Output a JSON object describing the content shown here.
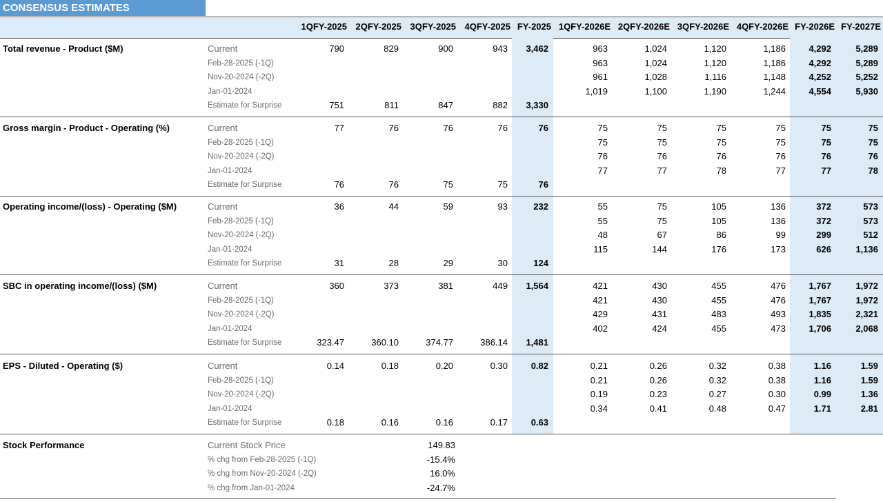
{
  "title": "CONSENSUS ESTIMATES",
  "columns": [
    "1QFY-2025",
    "2QFY-2025",
    "3QFY-2025",
    "4QFY-2025",
    "FY-2025",
    "1QFY-2026E",
    "2QFY-2026E",
    "3QFY-2026E",
    "4QFY-2026E",
    "FY-2026E",
    "FY-2027E"
  ],
  "row_labels": [
    "Current",
    "Feb-28-2025 (-1Q)",
    "Nov-20-2024 (-2Q)",
    "Jan-01-2024",
    "Estimate for Surprise"
  ],
  "metrics": [
    {
      "name": "Total revenue - Product ($M)",
      "rows": [
        [
          "790",
          "829",
          "900",
          "943",
          "3,462",
          "963",
          "1,024",
          "1,120",
          "1,186",
          "4,292",
          "5,289"
        ],
        [
          "",
          "",
          "",
          "",
          "",
          "963",
          "1,024",
          "1,120",
          "1,186",
          "4,292",
          "5,289"
        ],
        [
          "",
          "",
          "",
          "",
          "",
          "961",
          "1,028",
          "1,116",
          "1,148",
          "4,252",
          "5,252"
        ],
        [
          "",
          "",
          "",
          "",
          "",
          "1,019",
          "1,100",
          "1,190",
          "1,244",
          "4,554",
          "5,930"
        ],
        [
          "751",
          "811",
          "847",
          "882",
          "3,330",
          "",
          "",
          "",
          "",
          "",
          ""
        ]
      ]
    },
    {
      "name": "Gross margin - Product - Operating (%)",
      "rows": [
        [
          "77",
          "76",
          "76",
          "76",
          "76",
          "75",
          "75",
          "75",
          "75",
          "75",
          "75"
        ],
        [
          "",
          "",
          "",
          "",
          "",
          "75",
          "75",
          "75",
          "75",
          "75",
          "75"
        ],
        [
          "",
          "",
          "",
          "",
          "",
          "76",
          "76",
          "76",
          "76",
          "76",
          "76"
        ],
        [
          "",
          "",
          "",
          "",
          "",
          "77",
          "77",
          "78",
          "77",
          "77",
          "78"
        ],
        [
          "76",
          "76",
          "75",
          "75",
          "76",
          "",
          "",
          "",
          "",
          "",
          ""
        ]
      ]
    },
    {
      "name": "Operating income/(loss) - Operating ($M)",
      "rows": [
        [
          "36",
          "44",
          "59",
          "93",
          "232",
          "55",
          "75",
          "105",
          "136",
          "372",
          "573"
        ],
        [
          "",
          "",
          "",
          "",
          "",
          "55",
          "75",
          "105",
          "136",
          "372",
          "573"
        ],
        [
          "",
          "",
          "",
          "",
          "",
          "48",
          "67",
          "86",
          "99",
          "299",
          "512"
        ],
        [
          "",
          "",
          "",
          "",
          "",
          "115",
          "144",
          "176",
          "173",
          "626",
          "1,136"
        ],
        [
          "31",
          "28",
          "29",
          "30",
          "124",
          "",
          "",
          "",
          "",
          "",
          ""
        ]
      ]
    },
    {
      "name": "SBC in operating income/(loss) ($M)",
      "rows": [
        [
          "360",
          "373",
          "381",
          "449",
          "1,564",
          "421",
          "430",
          "455",
          "476",
          "1,767",
          "1,972"
        ],
        [
          "",
          "",
          "",
          "",
          "",
          "421",
          "430",
          "455",
          "476",
          "1,767",
          "1,972"
        ],
        [
          "",
          "",
          "",
          "",
          "",
          "429",
          "431",
          "483",
          "493",
          "1,835",
          "2,321"
        ],
        [
          "",
          "",
          "",
          "",
          "",
          "402",
          "424",
          "455",
          "473",
          "1,706",
          "2,068"
        ],
        [
          "323.47",
          "360.10",
          "374.77",
          "386.14",
          "1,481",
          "",
          "",
          "",
          "",
          "",
          ""
        ]
      ]
    },
    {
      "name": "EPS - Diluted - Operating ($)",
      "rows": [
        [
          "0.14",
          "0.18",
          "0.20",
          "0.30",
          "0.82",
          "0.21",
          "0.26",
          "0.32",
          "0.38",
          "1.16",
          "1.59"
        ],
        [
          "",
          "",
          "",
          "",
          "",
          "0.21",
          "0.26",
          "0.32",
          "0.38",
          "1.16",
          "1.59"
        ],
        [
          "",
          "",
          "",
          "",
          "",
          "0.19",
          "0.23",
          "0.27",
          "0.30",
          "0.99",
          "1.36"
        ],
        [
          "",
          "",
          "",
          "",
          "",
          "0.34",
          "0.41",
          "0.48",
          "0.47",
          "1.71",
          "2.81"
        ],
        [
          "0.18",
          "0.16",
          "0.16",
          "0.17",
          "0.63",
          "",
          "",
          "",
          "",
          "",
          ""
        ]
      ]
    }
  ],
  "stock_performance": {
    "name": "Stock Performance",
    "rows": [
      {
        "label": "Current Stock Price",
        "value": "149.83"
      },
      {
        "label": "% chg from Feb-28-2025 (-1Q)",
        "value": "-15.4%"
      },
      {
        "label": "% chg from Nov-20-2024 (-2Q)",
        "value": "16.0%"
      },
      {
        "label": "% chg from Jan-01-2024",
        "value": "-24.7%"
      }
    ]
  }
}
